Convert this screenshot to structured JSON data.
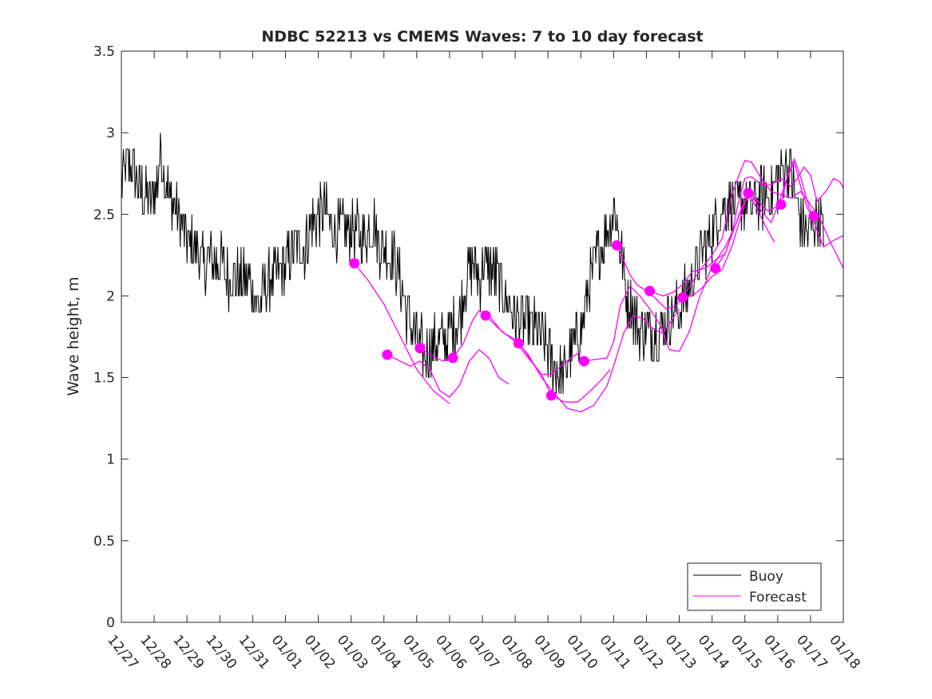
{
  "chart_data": {
    "type": "line",
    "title": "NDBC 52213 vs CMEMS Waves: 7 to 10 day forecast",
    "xlabel": "",
    "ylabel": "Wave height, m",
    "xlim": [
      0,
      22
    ],
    "ylim": [
      0,
      3.5
    ],
    "yticks": [
      0,
      0.5,
      1,
      1.5,
      2,
      2.5,
      3,
      3.5
    ],
    "ytick_labels": [
      "0",
      "0.5",
      "1",
      "1.5",
      "2",
      "2.5",
      "3",
      "3.5"
    ],
    "xticks": [
      0,
      1,
      2,
      3,
      4,
      5,
      6,
      7,
      8,
      9,
      10,
      11,
      12,
      13,
      14,
      15,
      16,
      17,
      18,
      19,
      20,
      21,
      22
    ],
    "xtick_labels": [
      "12/27",
      "12/28",
      "12/29",
      "12/30",
      "12/31",
      "01/01",
      "01/02",
      "01/03",
      "01/04",
      "01/05",
      "01/06",
      "01/07",
      "01/08",
      "01/09",
      "01/10",
      "01/11",
      "01/12",
      "01/13",
      "01/14",
      "01/15",
      "01/16",
      "01/17",
      "01/18"
    ],
    "legend": {
      "position": "bottom-right",
      "entries": [
        "Buoy",
        "Forecast"
      ]
    },
    "colors": {
      "buoy": "#000000",
      "forecast": "#ff00ff",
      "axes": "#262626"
    },
    "buoy_anchors": [
      [
        0.0,
        2.7
      ],
      [
        0.15,
        2.8
      ],
      [
        0.3,
        2.8
      ],
      [
        0.5,
        2.7
      ],
      [
        0.7,
        2.6
      ],
      [
        0.9,
        2.6
      ],
      [
        1.1,
        2.7
      ],
      [
        1.2,
        2.9
      ],
      [
        1.35,
        2.7
      ],
      [
        1.5,
        2.6
      ],
      [
        1.7,
        2.5
      ],
      [
        1.9,
        2.4
      ],
      [
        2.1,
        2.3
      ],
      [
        2.3,
        2.3
      ],
      [
        2.5,
        2.2
      ],
      [
        2.7,
        2.2
      ],
      [
        3.0,
        2.2
      ],
      [
        3.3,
        2.1
      ],
      [
        3.6,
        2.1
      ],
      [
        3.9,
        2.1
      ],
      [
        4.1,
        2.0
      ],
      [
        4.2,
        1.9
      ],
      [
        4.3,
        2.0
      ],
      [
        4.5,
        2.1
      ],
      [
        4.7,
        2.1
      ],
      [
        5.0,
        2.2
      ],
      [
        5.3,
        2.3
      ],
      [
        5.6,
        2.3
      ],
      [
        5.8,
        2.45
      ],
      [
        6.0,
        2.5
      ],
      [
        6.2,
        2.5
      ],
      [
        6.5,
        2.4
      ],
      [
        6.8,
        2.4
      ],
      [
        7.1,
        2.4
      ],
      [
        7.3,
        2.35
      ],
      [
        7.5,
        2.4
      ],
      [
        7.7,
        2.45
      ],
      [
        7.9,
        2.3
      ],
      [
        8.1,
        2.25
      ],
      [
        8.3,
        2.25
      ],
      [
        8.5,
        2.1
      ],
      [
        8.7,
        1.9
      ],
      [
        8.9,
        1.8
      ],
      [
        9.1,
        1.7
      ],
      [
        9.3,
        1.65
      ],
      [
        9.5,
        1.7
      ],
      [
        9.7,
        1.72
      ],
      [
        9.9,
        1.72
      ],
      [
        10.1,
        1.8
      ],
      [
        10.3,
        1.85
      ],
      [
        10.5,
        2.1
      ],
      [
        10.7,
        2.2
      ],
      [
        10.9,
        2.1
      ],
      [
        11.1,
        2.2
      ],
      [
        11.3,
        2.15
      ],
      [
        11.5,
        2.1
      ],
      [
        11.7,
        2.0
      ],
      [
        11.9,
        1.9
      ],
      [
        12.1,
        1.85
      ],
      [
        12.3,
        1.85
      ],
      [
        12.5,
        1.8
      ],
      [
        12.7,
        1.8
      ],
      [
        12.9,
        1.7
      ],
      [
        13.1,
        1.6
      ],
      [
        13.3,
        1.55
      ],
      [
        13.5,
        1.5
      ],
      [
        13.6,
        1.6
      ],
      [
        13.8,
        1.7
      ],
      [
        14.0,
        1.8
      ],
      [
        14.2,
        2.0
      ],
      [
        14.4,
        2.2
      ],
      [
        14.6,
        2.3
      ],
      [
        14.8,
        2.4
      ],
      [
        15.0,
        2.55
      ],
      [
        15.2,
        2.3
      ],
      [
        15.4,
        2.0
      ],
      [
        15.6,
        1.9
      ],
      [
        15.8,
        1.8
      ],
      [
        16.0,
        1.8
      ],
      [
        16.2,
        1.75
      ],
      [
        16.4,
        1.8
      ],
      [
        16.6,
        1.85
      ],
      [
        16.8,
        1.9
      ],
      [
        17.0,
        1.9
      ],
      [
        17.2,
        2.0
      ],
      [
        17.4,
        2.1
      ],
      [
        17.6,
        2.2
      ],
      [
        17.8,
        2.3
      ],
      [
        18.0,
        2.4
      ],
      [
        18.2,
        2.5
      ],
      [
        18.4,
        2.55
      ],
      [
        18.6,
        2.55
      ],
      [
        18.8,
        2.55
      ],
      [
        19.0,
        2.6
      ],
      [
        19.2,
        2.55
      ],
      [
        19.4,
        2.6
      ],
      [
        19.6,
        2.6
      ],
      [
        19.8,
        2.65
      ],
      [
        20.0,
        2.7
      ],
      [
        20.2,
        2.8
      ],
      [
        20.4,
        2.8
      ],
      [
        20.5,
        2.65
      ],
      [
        20.7,
        2.45
      ],
      [
        20.9,
        2.4
      ],
      [
        21.1,
        2.45
      ],
      [
        21.3,
        2.45
      ],
      [
        21.4,
        2.35
      ]
    ],
    "forecast_segments": [
      [
        [
          7.1,
          2.2
        ],
        [
          7.5,
          2.1
        ],
        [
          8.0,
          1.95
        ],
        [
          8.5,
          1.75
        ],
        [
          9.0,
          1.55
        ],
        [
          9.5,
          1.42
        ],
        [
          10.0,
          1.34
        ]
      ],
      [
        [
          8.1,
          1.64
        ],
        [
          8.5,
          1.6
        ],
        [
          8.8,
          1.57
        ],
        [
          9.1,
          1.6
        ],
        [
          9.4,
          1.55
        ],
        [
          9.7,
          1.42
        ],
        [
          10.0,
          1.38
        ],
        [
          10.3,
          1.45
        ],
        [
          10.6,
          1.6
        ],
        [
          10.9,
          1.67
        ],
        [
          11.2,
          1.62
        ],
        [
          11.5,
          1.5
        ],
        [
          11.8,
          1.46
        ]
      ],
      [
        [
          9.1,
          1.68
        ],
        [
          9.5,
          1.63
        ],
        [
          9.8,
          1.6
        ],
        [
          10.1,
          1.62
        ],
        [
          10.4,
          1.7
        ],
        [
          10.7,
          1.85
        ],
        [
          10.9,
          1.91
        ],
        [
          11.2,
          1.88
        ],
        [
          11.6,
          1.78
        ],
        [
          12.1,
          1.72
        ],
        [
          12.5,
          1.6
        ],
        [
          12.8,
          1.52
        ],
        [
          13.1,
          1.52
        ],
        [
          13.4,
          1.57
        ],
        [
          13.7,
          1.62
        ],
        [
          14.0,
          1.66
        ]
      ],
      [
        [
          11.1,
          1.88
        ],
        [
          11.5,
          1.8
        ],
        [
          12.0,
          1.72
        ],
        [
          12.4,
          1.62
        ],
        [
          12.8,
          1.52
        ],
        [
          13.1,
          1.39
        ],
        [
          13.5,
          1.35
        ],
        [
          13.9,
          1.35
        ],
        [
          14.2,
          1.4
        ],
        [
          14.6,
          1.48
        ],
        [
          14.9,
          1.55
        ]
      ],
      [
        [
          12.1,
          1.71
        ],
        [
          12.4,
          1.64
        ],
        [
          12.8,
          1.5
        ],
        [
          13.2,
          1.4
        ],
        [
          13.6,
          1.31
        ],
        [
          14.0,
          1.29
        ],
        [
          14.4,
          1.33
        ],
        [
          14.8,
          1.45
        ],
        [
          15.0,
          1.57
        ],
        [
          15.3,
          1.77
        ],
        [
          15.6,
          1.88
        ],
        [
          15.9,
          1.86
        ],
        [
          16.2,
          1.8
        ],
        [
          16.5,
          1.77
        ],
        [
          16.8,
          1.86
        ],
        [
          17.0,
          1.92
        ]
      ],
      [
        [
          14.1,
          1.6
        ],
        [
          14.4,
          1.61
        ],
        [
          14.8,
          1.62
        ],
        [
          15.0,
          1.72
        ],
        [
          15.2,
          1.94
        ],
        [
          15.5,
          2.06
        ],
        [
          15.8,
          2.0
        ],
        [
          16.1,
          1.92
        ],
        [
          16.4,
          1.83
        ],
        [
          16.7,
          1.67
        ],
        [
          17.0,
          1.66
        ],
        [
          17.3,
          1.78
        ],
        [
          17.6,
          1.98
        ],
        [
          18.0,
          2.18
        ],
        [
          18.4,
          2.3
        ],
        [
          18.7,
          2.43
        ],
        [
          19.0,
          2.58
        ],
        [
          19.2,
          2.62
        ],
        [
          19.5,
          2.52
        ],
        [
          19.8,
          2.45
        ],
        [
          20.0,
          2.55
        ],
        [
          20.3,
          2.73
        ],
        [
          20.5,
          2.82
        ],
        [
          20.7,
          2.67
        ],
        [
          20.9,
          2.54
        ],
        [
          21.1,
          2.47
        ]
      ],
      [
        [
          15.1,
          2.31
        ],
        [
          15.3,
          2.22
        ],
        [
          15.5,
          2.13
        ],
        [
          15.7,
          2.07
        ],
        [
          16.0,
          2.03
        ],
        [
          16.3,
          1.98
        ],
        [
          16.6,
          1.92
        ],
        [
          16.9,
          1.94
        ],
        [
          17.2,
          2.02
        ],
        [
          17.6,
          2.15
        ],
        [
          18.0,
          2.25
        ],
        [
          18.3,
          2.35
        ],
        [
          18.6,
          2.62
        ],
        [
          18.8,
          2.73
        ],
        [
          19.0,
          2.83
        ],
        [
          19.2,
          2.82
        ],
        [
          19.5,
          2.72
        ],
        [
          19.8,
          2.64
        ],
        [
          20.1,
          2.62
        ],
        [
          20.4,
          2.6
        ],
        [
          20.7,
          2.64
        ],
        [
          21.0,
          2.56
        ],
        [
          21.3,
          2.47
        ],
        [
          21.6,
          2.33
        ],
        [
          22.0,
          2.17
        ]
      ],
      [
        [
          16.1,
          2.03
        ],
        [
          16.5,
          2.0
        ],
        [
          16.8,
          2.02
        ],
        [
          17.1,
          2.07
        ],
        [
          17.4,
          2.15
        ],
        [
          17.8,
          2.17
        ],
        [
          18.1,
          2.22
        ],
        [
          18.4,
          2.26
        ],
        [
          18.6,
          2.38
        ],
        [
          18.8,
          2.57
        ],
        [
          19.0,
          2.72
        ],
        [
          19.2,
          2.73
        ],
        [
          19.5,
          2.68
        ],
        [
          19.8,
          2.68
        ],
        [
          20.1,
          2.72
        ],
        [
          20.4,
          2.67
        ],
        [
          20.6,
          2.72
        ],
        [
          20.8,
          2.79
        ],
        [
          21.0,
          2.74
        ],
        [
          21.2,
          2.58
        ],
        [
          21.5,
          2.65
        ],
        [
          21.7,
          2.72
        ],
        [
          21.9,
          2.7
        ],
        [
          22.0,
          2.66
        ]
      ],
      [
        [
          17.1,
          1.99
        ],
        [
          17.4,
          2.0
        ],
        [
          17.7,
          2.05
        ],
        [
          18.0,
          2.12
        ],
        [
          18.3,
          2.16
        ],
        [
          18.6,
          2.3
        ],
        [
          18.9,
          2.5
        ],
        [
          19.1,
          2.63
        ],
        [
          19.4,
          2.58
        ],
        [
          19.7,
          2.52
        ],
        [
          20.1,
          2.56
        ],
        [
          20.3,
          2.74
        ],
        [
          20.5,
          2.84
        ],
        [
          20.7,
          2.73
        ],
        [
          20.9,
          2.58
        ],
        [
          21.2,
          2.4
        ],
        [
          21.4,
          2.3
        ],
        [
          21.7,
          2.34
        ],
        [
          22.0,
          2.37
        ]
      ],
      [
        [
          18.1,
          2.17
        ],
        [
          18.4,
          2.26
        ],
        [
          18.7,
          2.43
        ],
        [
          18.9,
          2.54
        ],
        [
          19.1,
          2.62
        ],
        [
          19.3,
          2.56
        ],
        [
          19.5,
          2.48
        ],
        [
          19.7,
          2.4
        ],
        [
          19.9,
          2.33
        ]
      ]
    ],
    "forecast_markers": [
      [
        7.1,
        2.2
      ],
      [
        8.1,
        1.64
      ],
      [
        9.1,
        1.68
      ],
      [
        10.1,
        1.62
      ],
      [
        11.1,
        1.88
      ],
      [
        12.1,
        1.71
      ],
      [
        13.1,
        1.39
      ],
      [
        14.1,
        1.6
      ],
      [
        15.1,
        2.31
      ],
      [
        16.1,
        2.03
      ],
      [
        17.1,
        1.99
      ],
      [
        18.1,
        2.17
      ],
      [
        19.1,
        2.63
      ],
      [
        20.1,
        2.56
      ],
      [
        21.1,
        2.49
      ]
    ]
  }
}
